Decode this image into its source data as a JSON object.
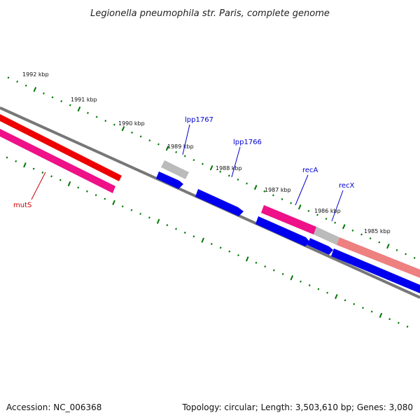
{
  "title": "Legionella pneumophila str. Paris, complete genome",
  "footer": {
    "accession": "Accession: NC_006368",
    "topology": "Topology: circular; Length: 3,503,610 bp; Genes: 3,080"
  },
  "scale_labels": [
    {
      "text": "1992 kbp"
    },
    {
      "text": "1991 kbp"
    },
    {
      "text": "1990 kbp"
    },
    {
      "text": "1989 kbp"
    },
    {
      "text": "1988 kbp"
    },
    {
      "text": "1987 kbp"
    },
    {
      "text": "1986 kbp"
    },
    {
      "text": "1985 kbp"
    }
  ],
  "gene_labels": [
    {
      "text": "mutS",
      "color": "#cc0000"
    },
    {
      "text": "lpp1767",
      "color": "#0000cc"
    },
    {
      "text": "lpp1766",
      "color": "#0000cc"
    },
    {
      "text": "recA",
      "color": "#0000cc"
    },
    {
      "text": "recX",
      "color": "#0000cc"
    }
  ],
  "colors": {
    "backbone": "#777777",
    "tick": "#007700",
    "cds_forward": "#0000ee",
    "gene_red": "#ee0000",
    "gene_magenta": "#ee1188",
    "gene_gray": "#bbbbbb",
    "gene_salmon": "#ee8080"
  }
}
